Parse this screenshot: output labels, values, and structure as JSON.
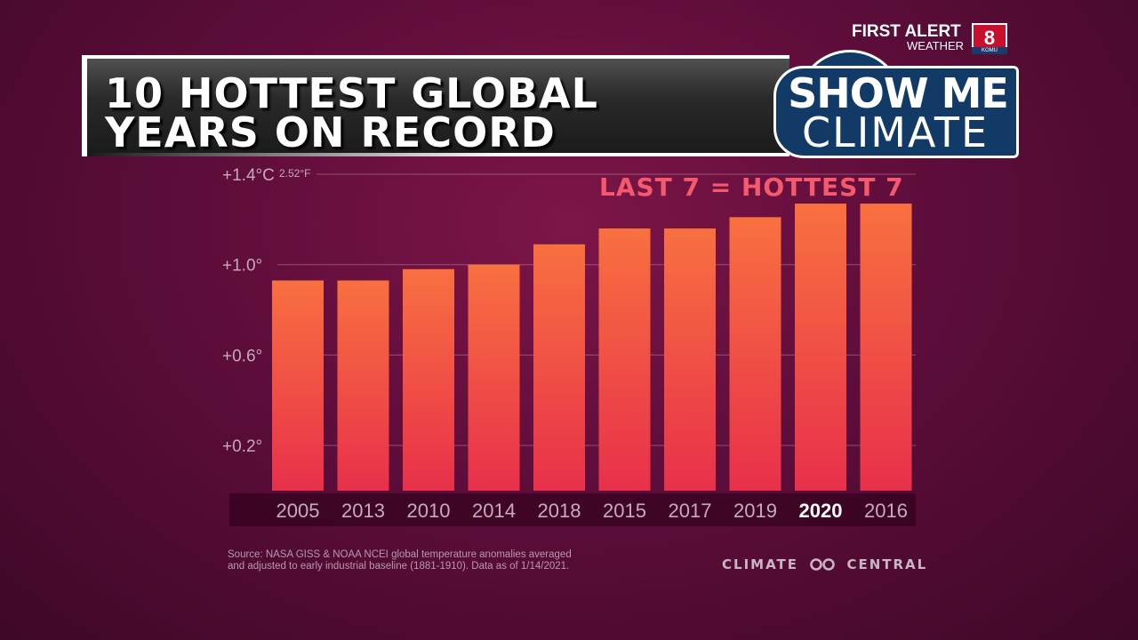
{
  "header": {
    "title_line1": "10 HOTTEST GLOBAL",
    "title_line2": "YEARS ON RECORD"
  },
  "branding": {
    "show_me": "SHOW ME",
    "climate": "CLIMATE",
    "first_alert": "FIRST ALERT",
    "weather": "WEATHER",
    "station_number": "8",
    "station_call": "KOMU",
    "climate_central": "CLIMATE CENTRAL"
  },
  "callout": "LAST 7 = HOTTEST 7",
  "source": "Source: NASA GISS & NOAA NCEI global temperature anomalies averaged\nand adjusted to early industrial baseline (1881-1910). Data as of 1/14/2021.",
  "colors": {
    "bar_top": "#f87040",
    "bar_bottom": "#e8304a",
    "callout": "#f45a6e",
    "highlight_label": "#ffffff",
    "tick_label": "#c7aabb"
  },
  "chart_data": {
    "type": "bar",
    "categories": [
      "2005",
      "2013",
      "2010",
      "2014",
      "2018",
      "2015",
      "2017",
      "2019",
      "2020",
      "2016"
    ],
    "values": [
      0.93,
      0.93,
      0.98,
      1.0,
      1.09,
      1.16,
      1.16,
      1.21,
      1.27,
      1.27
    ],
    "highlight_category": "2020",
    "ylim": [
      0.0,
      1.4
    ],
    "yticks": [
      0.2,
      0.6,
      1.0,
      1.4
    ],
    "ytick_labels": [
      "+0.2°",
      "+0.6°",
      "+1.0°",
      "+1.4°C"
    ],
    "top_tick_secondary": "2.52°F",
    "grid": true
  }
}
